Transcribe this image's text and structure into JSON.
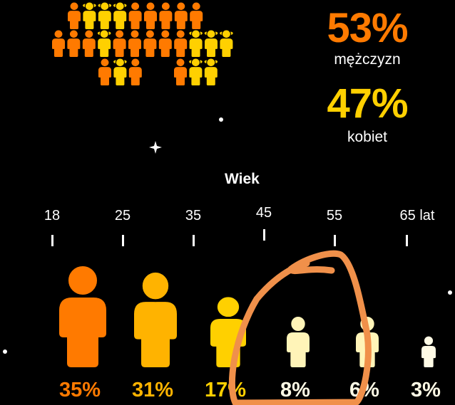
{
  "gender_grid": {
    "rows": [
      "mfffmmmmm",
      "mmmfmmmmmfff",
      "mfm",
      "mff"
    ],
    "colors": {
      "m": "#FF7A00",
      "f": "#FFD000"
    }
  },
  "gender": {
    "men": {
      "value": "53%",
      "label": "mężczyzn",
      "color": "#FF7A00"
    },
    "women": {
      "value": "47%",
      "label": "kobiet",
      "color": "#FFD000"
    }
  },
  "age": {
    "title": "Wiek",
    "ticks": [
      "18",
      "25",
      "35",
      "45",
      "55",
      "65 lat"
    ],
    "groups": [
      {
        "value": "35%",
        "percent": 35,
        "color": "#FF7A00"
      },
      {
        "value": "31%",
        "percent": 31,
        "color": "#FFB300"
      },
      {
        "value": "17%",
        "percent": 17,
        "color": "#FFD000"
      },
      {
        "value": "8%",
        "percent": 8,
        "color": "#FFF4B8"
      },
      {
        "value": "6%",
        "percent": 6,
        "color": "#FFF4B8"
      },
      {
        "value": "3%",
        "percent": 3,
        "color": "#FFFBE6"
      }
    ]
  },
  "annotation": {
    "color": "#F0904A"
  }
}
